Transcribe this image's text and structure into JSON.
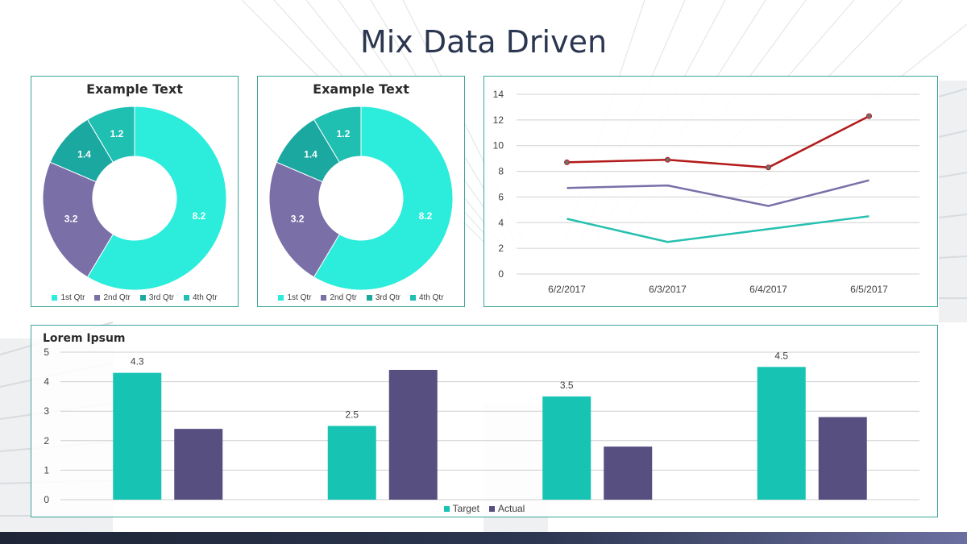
{
  "title": "Mix Data Driven",
  "colors": {
    "accent_teal": "#2cecdc",
    "accent_purple": "#7b6fa8",
    "accent_dark_teal": "#1aa8a0",
    "accent_mid_teal": "#1fbfb2",
    "frame": "#3aa597",
    "line_red": "#b31b1b",
    "line_purple": "#7b6fa8",
    "line_teal": "#26c0b0",
    "bar_target": "#17c4b3",
    "bar_actual": "#564f80",
    "bottom_bar": "#2c3650"
  },
  "chart_data": [
    {
      "type": "pie",
      "variant": "donut",
      "title": "Example Text",
      "categories": [
        "1st Qtr",
        "2nd Qtr",
        "3rd Qtr",
        "4th Qtr"
      ],
      "values": [
        8.2,
        3.2,
        1.4,
        1.2
      ],
      "data_labels": [
        "8.2",
        "3.2",
        "1.4",
        "1.2"
      ],
      "colors": [
        "#2cecdc",
        "#7b6fa8",
        "#1aa8a0",
        "#1fbfb2"
      ],
      "legend_position": "bottom"
    },
    {
      "type": "pie",
      "variant": "donut",
      "title": "Example Text",
      "categories": [
        "1st Qtr",
        "2nd Qtr",
        "3rd Qtr",
        "4th Qtr"
      ],
      "values": [
        8.2,
        3.2,
        1.4,
        1.2
      ],
      "data_labels": [
        "8.2",
        "3.2",
        "1.4",
        "1.2"
      ],
      "colors": [
        "#2cecdc",
        "#7b6fa8",
        "#1aa8a0",
        "#1fbfb2"
      ],
      "legend_position": "bottom"
    },
    {
      "type": "line",
      "title": "",
      "x": [
        "6/2/2017",
        "6/3/2017",
        "6/4/2017",
        "6/5/2017"
      ],
      "series": [
        {
          "values": [
            8.7,
            8.9,
            8.3,
            12.3
          ],
          "color": "#b31b1b",
          "markers": true
        },
        {
          "values": [
            6.7,
            6.9,
            5.3,
            7.3
          ],
          "color": "#7b6fa8",
          "markers": false
        },
        {
          "values": [
            4.3,
            2.5,
            3.5,
            4.5
          ],
          "color": "#26c0b0",
          "markers": false
        }
      ],
      "ylim": [
        0,
        14
      ],
      "yticks": [
        0,
        2,
        4,
        6,
        8,
        10,
        12,
        14
      ],
      "grid": true,
      "legend": false
    },
    {
      "type": "bar",
      "title": "Lorem Ipsum",
      "categories": [
        "",
        "",
        "",
        ""
      ],
      "series": [
        {
          "name": "Target",
          "values": [
            4.3,
            2.5,
            3.5,
            4.5
          ],
          "color": "#17c4b3",
          "data_labels": [
            "4.3",
            "2.5",
            "3.5",
            "4.5"
          ]
        },
        {
          "name": "Actual",
          "values": [
            2.4,
            4.4,
            1.8,
            2.8
          ],
          "color": "#564f80"
        }
      ],
      "ylim": [
        0,
        5
      ],
      "yticks": [
        0,
        1,
        2,
        3,
        4,
        5
      ],
      "grid": true,
      "legend_position": "bottom"
    }
  ]
}
